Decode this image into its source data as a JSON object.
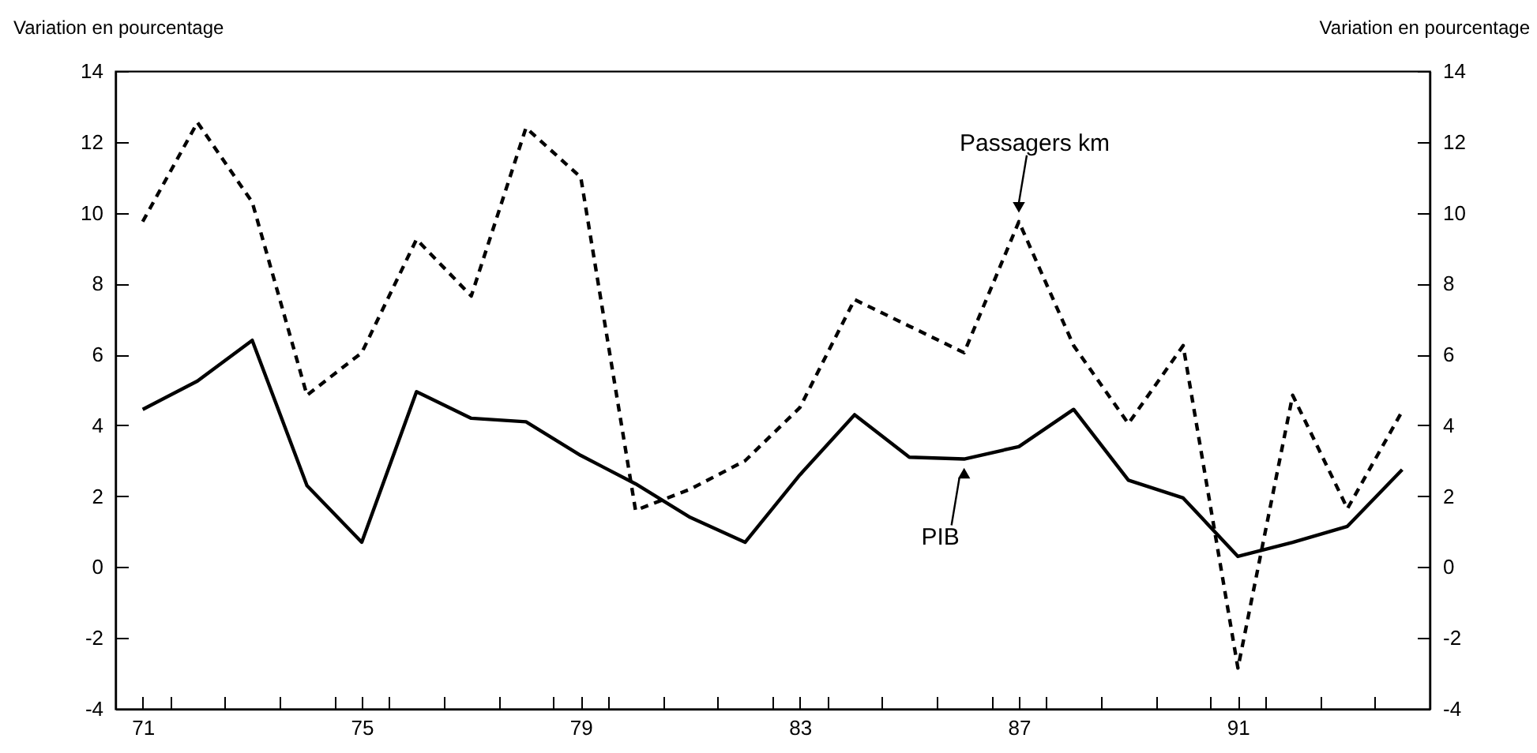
{
  "chart_data": {
    "type": "line",
    "x": [
      71,
      72,
      73,
      74,
      75,
      76,
      77,
      78,
      79,
      80,
      81,
      82,
      83,
      84,
      85,
      86,
      87,
      88,
      89,
      90,
      91,
      92,
      93,
      94
    ],
    "series": [
      {
        "color": "#000000",
        "line_style": "dashed",
        "values": [
          9.75,
          12.55,
          10.3,
          4.85,
          6.05,
          9.25,
          7.65,
          12.4,
          11.0,
          1.6,
          2.2,
          3.0,
          4.5,
          7.55,
          6.8,
          6.05,
          9.75,
          6.25,
          4.05,
          6.25,
          -2.85,
          4.85,
          1.65,
          4.4
        ]
      },
      {
        "color": "#000000",
        "line_style": "solid",
        "values": [
          4.45,
          5.25,
          6.4,
          2.3,
          0.7,
          4.95,
          4.2,
          4.1,
          3.15,
          2.35,
          1.4,
          0.7,
          2.6,
          4.3,
          3.1,
          3.05,
          3.4,
          4.45,
          2.45,
          1.95,
          0.3,
          0.7,
          1.15,
          2.75
        ]
      }
    ],
    "ylabel": "Variation en pourcentage",
    "y2label": "Variation en pourcentage",
    "xlim": [
      70.5,
      94.5
    ],
    "xticks": [
      71,
      {
        "value": 71.5,
        "label": null
      },
      {
        "value": 72.5,
        "label": null
      },
      {
        "value": 73.5,
        "label": null
      },
      {
        "value": 74.5,
        "label": null
      },
      75,
      {
        "value": 75.5,
        "label": null
      },
      {
        "value": 76.5,
        "label": null
      },
      {
        "value": 77.5,
        "label": null
      },
      {
        "value": 78.5,
        "label": null
      },
      79,
      {
        "value": 79.5,
        "label": null
      },
      {
        "value": 80.5,
        "label": null
      },
      {
        "value": 81.5,
        "label": null
      },
      {
        "value": 82.5,
        "label": null
      },
      83,
      {
        "value": 83.5,
        "label": null
      },
      {
        "value": 84.5,
        "label": null
      },
      {
        "value": 85.5,
        "label": null
      },
      {
        "value": 86.5,
        "label": null
      },
      87,
      {
        "value": 87.5,
        "label": null
      },
      {
        "value": 88.5,
        "label": null
      },
      {
        "value": 89.5,
        "label": null
      },
      {
        "value": 90.5,
        "label": null
      },
      91,
      {
        "value": 91.5,
        "label": null
      },
      {
        "value": 92.5,
        "label": null
      },
      {
        "value": 93.5,
        "label": null
      }
    ],
    "ylim": [
      -4,
      14
    ],
    "yticks": [
      -4,
      -2,
      0,
      2,
      4,
      6,
      8,
      10,
      12,
      14
    ],
    "y2lim": [
      -4,
      14
    ],
    "y2ticks": [
      -4,
      -2,
      0,
      2,
      4,
      6,
      8,
      10,
      12,
      14
    ],
    "annotations": [
      {
        "text": "Passagers km",
        "x": 87,
        "y": 9.75
      },
      {
        "text": "PIB",
        "x": 86,
        "y": 3.05
      }
    ]
  }
}
